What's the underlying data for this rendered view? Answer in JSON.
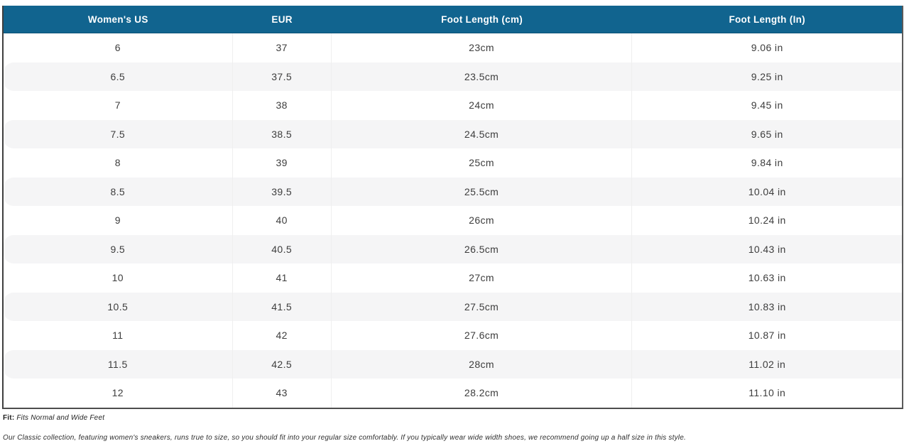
{
  "table": {
    "columns": [
      "Women's US",
      "EUR",
      "Foot Length (cm)",
      "Foot Length (In)"
    ],
    "rows": [
      [
        "6",
        "37",
        "23cm",
        "9.06 in"
      ],
      [
        "6.5",
        "37.5",
        "23.5cm",
        "9.25 in"
      ],
      [
        "7",
        "38",
        "24cm",
        "9.45 in"
      ],
      [
        "7.5",
        "38.5",
        "24.5cm",
        "9.65 in"
      ],
      [
        "8",
        "39",
        "25cm",
        "9.84 in"
      ],
      [
        "8.5",
        "39.5",
        "25.5cm",
        "10.04 in"
      ],
      [
        "9",
        "40",
        "26cm",
        "10.24 in"
      ],
      [
        "9.5",
        "40.5",
        "26.5cm",
        "10.43 in"
      ],
      [
        "10",
        "41",
        "27cm",
        "10.63 in"
      ],
      [
        "10.5",
        "41.5",
        "27.5cm",
        "10.83 in"
      ],
      [
        "11",
        "42",
        "27.6cm",
        "10.87 in"
      ],
      [
        "11.5",
        "42.5",
        "28cm",
        "11.02 in"
      ],
      [
        "12",
        "43",
        "28.2cm",
        "11.10 in"
      ]
    ]
  },
  "footer": {
    "fit_label": "Fit:",
    "fit_value": "Fits Normal and Wide Feet",
    "description": "Our Classic collection, featuring women's sneakers, runs true to size, so you should fit into your regular size comfortably. If you typically wear wide width shoes, we recommend going up a half size in this style."
  },
  "colors": {
    "header_bg": "#11648f",
    "header_text": "#ffffff",
    "stripe_bg": "#f5f5f6",
    "cell_text": "#3d3d3d"
  }
}
